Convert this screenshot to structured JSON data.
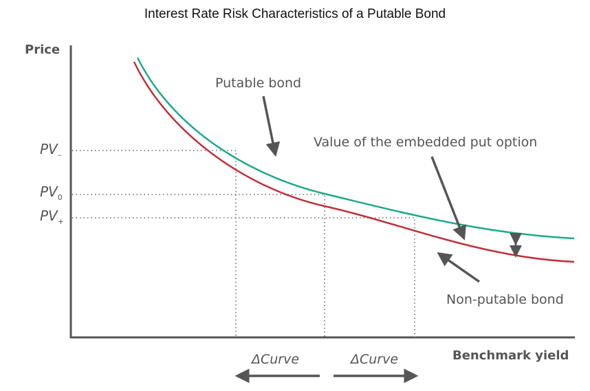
{
  "title": "Interest Rate Risk Characteristics of a Putable Bond",
  "axes": {
    "y_label": "Price",
    "x_label": "Benchmark yield"
  },
  "pv_labels": [
    {
      "main": "PV",
      "sub": "–"
    },
    {
      "main": "PV",
      "sub": "0"
    },
    {
      "main": "PV",
      "sub": "+"
    }
  ],
  "annotations": {
    "putable": "Putable bond",
    "put_option": "Value of the embedded put option",
    "non_putable": "Non-putable bond"
  },
  "delta_labels": {
    "left": "ΔCurve",
    "right": "ΔCurve"
  },
  "colors": {
    "putable": "#1aaa8a",
    "non_putable": "#c0303a",
    "axis": "#555555"
  }
}
